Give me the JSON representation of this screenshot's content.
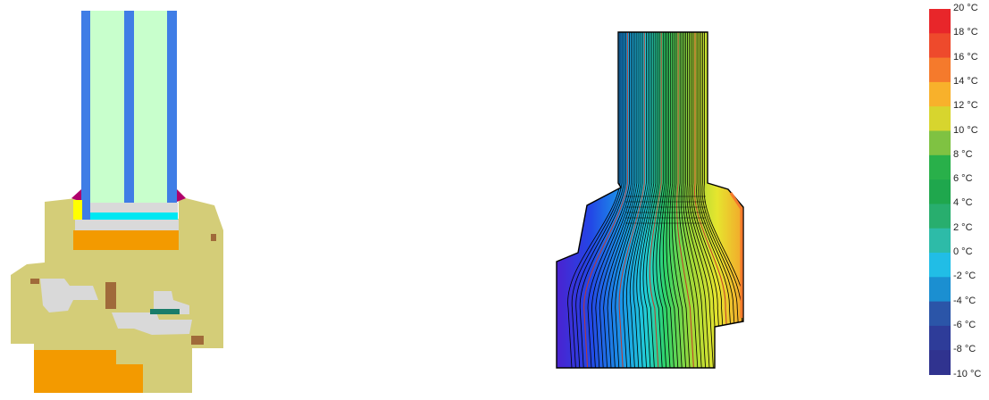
{
  "legend": {
    "unit": "°C",
    "entries": [
      {
        "label": "20 °C",
        "color": "#e8262a"
      },
      {
        "label": "18 °C",
        "color": "#ee4a2c"
      },
      {
        "label": "16 °C",
        "color": "#f57a2c"
      },
      {
        "label": "14 °C",
        "color": "#f8b12b"
      },
      {
        "label": "12 °C",
        "color": "#d7d52e"
      },
      {
        "label": "10 °C",
        "color": "#7fc242"
      },
      {
        "label": "8 °C",
        "color": "#29b04a"
      },
      {
        "label": "6 °C",
        "color": "#1fa74d"
      },
      {
        "label": "4 °C",
        "color": "#28ae6e"
      },
      {
        "label": "2 °C",
        "color": "#2dbba8"
      },
      {
        "label": "0 °C",
        "color": "#21bde6"
      },
      {
        "label": "-2 °C",
        "color": "#1b8fd1"
      },
      {
        "label": "-4 °C",
        "color": "#2b55a8"
      },
      {
        "label": "-6 °C",
        "color": "#2e3c99"
      },
      {
        "label": "-8 °C",
        "color": "#30338f"
      },
      {
        "label": "-10 °C",
        "color": "#2f2f86"
      }
    ]
  },
  "materials": {
    "glass": "#c8ffcc",
    "spacer": "#3f7de6",
    "frame": "#d4cd78",
    "insulation": "#f39a00",
    "metal": "#d9d9d9",
    "gasket": "#b0006b",
    "seal_yellow": "#ffff00",
    "cyan_block": "#00e7f2",
    "wood_detail": "#a06a3a",
    "teal": "#1a7d6a"
  },
  "isotherm_colors": [
    "#6b20c8",
    "#4a2ae0",
    "#2446e6",
    "#1e86e8",
    "#19c9e8",
    "#22d6a0",
    "#3ad65a",
    "#7fd63a",
    "#b9e032",
    "#e6e82e",
    "#f3b52c",
    "#f07a2a"
  ]
}
